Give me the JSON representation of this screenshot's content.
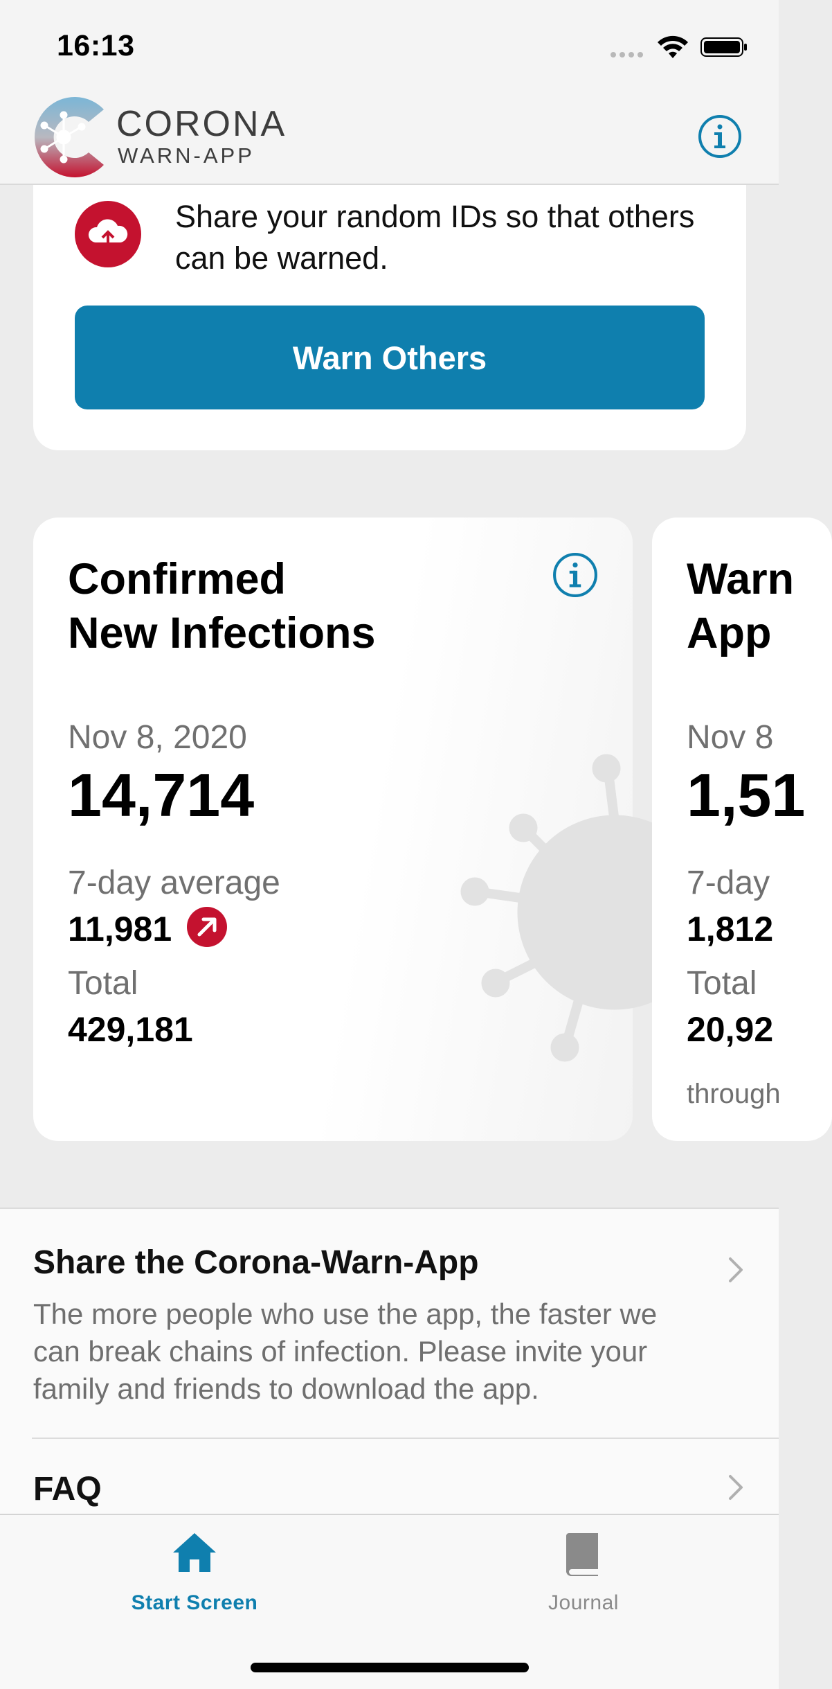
{
  "status_bar": {
    "time": "16:13"
  },
  "header": {
    "logo_title": "CORONA",
    "logo_subtitle": "WARN-APP"
  },
  "warn_card": {
    "text": "Share your random IDs so that others can be warned.",
    "button_label": "Warn Others"
  },
  "stats": [
    {
      "title_line1": "Confirmed",
      "title_line2": "New Infections",
      "date": "Nov 8, 2020",
      "value": "14,714",
      "avg_label": "7-day average",
      "avg_value": "11,981",
      "trend": "up",
      "total_label": "Total",
      "total_value": "429,181"
    },
    {
      "title_line1": "Warn",
      "title_line2": "App",
      "date": "Nov 8",
      "value": "1,51",
      "avg_label": "7-day",
      "avg_value": "1,812",
      "total_label": "Total",
      "total_value": "20,92",
      "footnote": "through"
    }
  ],
  "list": {
    "share": {
      "title": "Share the Corona-Warn-App",
      "description": "The more people who use the app, the faster we can break chains of infection. Please invite your family and friends to download the app."
    },
    "faq": {
      "title": "FAQ"
    }
  },
  "tabs": {
    "start": "Start Screen",
    "journal": "Journal"
  },
  "colors": {
    "accent": "#0f7fae",
    "alert": "#c4122f",
    "text_secondary": "#707070"
  }
}
